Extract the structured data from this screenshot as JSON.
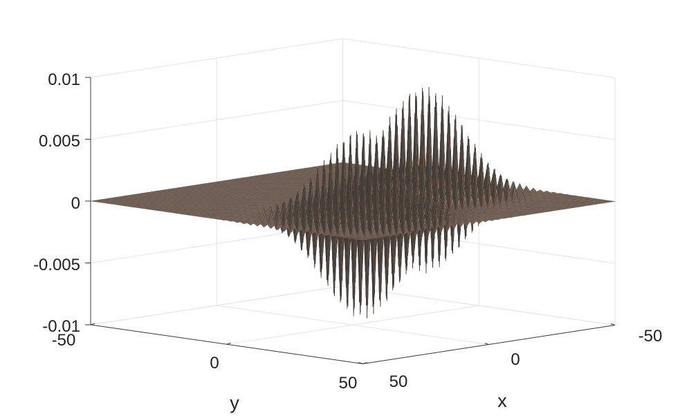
{
  "chart_data": {
    "type": "surface",
    "xlabel": "x",
    "ylabel": "y",
    "zlabel": "",
    "xlim": [
      -50,
      50
    ],
    "ylim": [
      -50,
      50
    ],
    "zlim": [
      -0.01,
      0.01
    ],
    "x_ticks": [
      "-50",
      "0",
      "50"
    ],
    "y_ticks": [
      "-50",
      "0",
      "50"
    ],
    "z_ticks": [
      "0.01",
      "0.005",
      "0",
      "-0.005",
      "-0.01"
    ],
    "grid": true,
    "surface_color": "#f2c4a2",
    "edge_color": "#3a3a3a",
    "lumps": [
      {
        "x_center": -25,
        "y_center": 3,
        "peak": 0.0087,
        "trough": -0.0065
      },
      {
        "x_center": 20,
        "y_center": 22,
        "peak": 0.0072,
        "trough": -0.0082
      }
    ]
  }
}
